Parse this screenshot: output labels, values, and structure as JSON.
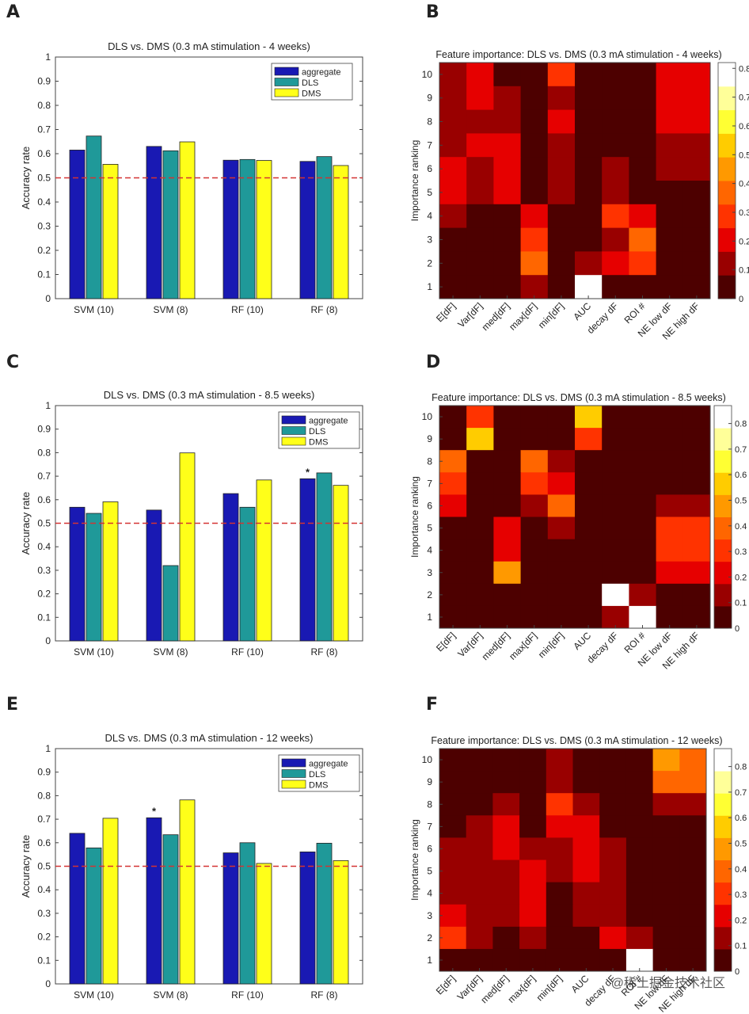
{
  "panels": [
    {
      "label": "A",
      "chart_data": {
        "type": "bar",
        "title": "DLS vs. DMS (0.3 mA stimulation - 4 weeks)",
        "ylabel": "Accuracy rate",
        "xlabel": "",
        "ylim": [
          0,
          1
        ],
        "yticks": [
          "0",
          "0.1",
          "0.2",
          "0.3",
          "0.4",
          "0.5",
          "0.6",
          "0.7",
          "0.8",
          "0.9",
          "1"
        ],
        "categories": [
          "SVM (10)",
          "SVM (8)",
          "RF (10)",
          "RF (8)"
        ],
        "series": [
          {
            "name": "aggregate",
            "color": "#1919b3",
            "values": [
              0.615,
              0.63,
              0.573,
              0.568
            ]
          },
          {
            "name": "DLS",
            "color": "#1f9999",
            "values": [
              0.673,
              0.612,
              0.576,
              0.588
            ]
          },
          {
            "name": "DMS",
            "color": "#ffff19",
            "values": [
              0.556,
              0.649,
              0.572,
              0.551
            ]
          }
        ],
        "reference_line": 0.5,
        "reference_line_color": "#d43333",
        "annotations": [],
        "legend": "top-right"
      }
    },
    {
      "label": "B",
      "chart_data": {
        "type": "heatmap",
        "title": "Feature importance: DLS vs. DMS (0.3 mA stimulation - 4 weeks)",
        "ylabel": "Importance ranking",
        "xlabels": [
          "E[dF]",
          "Var[dF]",
          "med[dF]",
          "max[dF]",
          "min[dF]",
          "AUC",
          "decay dF",
          "ROI #",
          "NE low dF",
          "NE high dF"
        ],
        "ylabels": [
          "10",
          "9",
          "8",
          "7",
          "6",
          "5",
          "4",
          "3",
          "2",
          "1"
        ],
        "colorbar_ticks": [
          "0",
          "0.1",
          "0.2",
          "0.3",
          "0.4",
          "0.5",
          "0.6",
          "0.7",
          "0.8"
        ],
        "vmax": 0.82,
        "matrix": [
          [
            0.1,
            0.2,
            0.0,
            0.0,
            0.3,
            0.0,
            0.0,
            0.0,
            0.2,
            0.2
          ],
          [
            0.1,
            0.2,
            0.1,
            0.0,
            0.1,
            0.0,
            0.0,
            0.0,
            0.2,
            0.2
          ],
          [
            0.1,
            0.1,
            0.1,
            0.0,
            0.2,
            0.0,
            0.0,
            0.0,
            0.2,
            0.2
          ],
          [
            0.1,
            0.2,
            0.2,
            0.0,
            0.1,
            0.0,
            0.0,
            0.0,
            0.1,
            0.1
          ],
          [
            0.2,
            0.1,
            0.2,
            0.0,
            0.1,
            0.0,
            0.1,
            0.0,
            0.1,
            0.1
          ],
          [
            0.2,
            0.1,
            0.2,
            0.0,
            0.1,
            0.0,
            0.1,
            0.0,
            0.0,
            0.0
          ],
          [
            0.1,
            0.0,
            0.0,
            0.2,
            0.0,
            0.0,
            0.3,
            0.2,
            0.0,
            0.0
          ],
          [
            0.0,
            0.0,
            0.0,
            0.3,
            0.0,
            0.0,
            0.1,
            0.4,
            0.0,
            0.0
          ],
          [
            0.0,
            0.0,
            0.0,
            0.4,
            0.0,
            0.1,
            0.2,
            0.3,
            0.0,
            0.0
          ],
          [
            0.0,
            0.0,
            0.0,
            0.1,
            0.0,
            0.8,
            0.0,
            0.0,
            0.0,
            0.0
          ]
        ]
      }
    },
    {
      "label": "C",
      "chart_data": {
        "type": "bar",
        "title": "DLS vs. DMS (0.3 mA stimulation - 8.5 weeks)",
        "ylabel": "Accuracy rate",
        "xlabel": "",
        "ylim": [
          0,
          1
        ],
        "yticks": [
          "0",
          "0.1",
          "0.2",
          "0.3",
          "0.4",
          "0.5",
          "0.6",
          "0.7",
          "0.8",
          "0.9",
          "1"
        ],
        "categories": [
          "SVM (10)",
          "SVM (8)",
          "RF (10)",
          "RF (8)"
        ],
        "series": [
          {
            "name": "aggregate",
            "color": "#1919b3",
            "values": [
              0.568,
              0.556,
              0.626,
              0.689
            ]
          },
          {
            "name": "DLS",
            "color": "#1f9999",
            "values": [
              0.542,
              0.32,
              0.568,
              0.714
            ]
          },
          {
            "name": "DMS",
            "color": "#ffff19",
            "values": [
              0.591,
              0.799,
              0.684,
              0.661
            ]
          }
        ],
        "reference_line": 0.5,
        "reference_line_color": "#d43333",
        "annotations": [
          {
            "category": 3,
            "series": 0,
            "text": "*"
          }
        ],
        "legend": "top-right"
      }
    },
    {
      "label": "D",
      "chart_data": {
        "type": "heatmap",
        "title": "Feature importance: DLS vs. DMS (0.3 mA stimulation - 8.5 weeks)",
        "ylabel": "Importance ranking",
        "xlabels": [
          "E[dF]",
          "Var[dF]",
          "med[dF]",
          "max[dF]",
          "min[dF]",
          "AUC",
          "decay dF",
          "ROI #",
          "NE low dF",
          "NE high dF"
        ],
        "ylabels": [
          "10",
          "9",
          "8",
          "7",
          "6",
          "5",
          "4",
          "3",
          "2",
          "1"
        ],
        "colorbar_ticks": [
          "0",
          "0.1",
          "0.2",
          "0.3",
          "0.4",
          "0.5",
          "0.6",
          "0.7",
          "0.8"
        ],
        "vmax": 0.87,
        "matrix": [
          [
            0.0,
            0.3,
            0.0,
            0.0,
            0.0,
            0.6,
            0.0,
            0.0,
            0.0,
            0.0
          ],
          [
            0.0,
            0.6,
            0.0,
            0.0,
            0.0,
            0.3,
            0.0,
            0.0,
            0.0,
            0.0
          ],
          [
            0.4,
            0.0,
            0.0,
            0.4,
            0.1,
            0.0,
            0.0,
            0.0,
            0.0,
            0.0
          ],
          [
            0.3,
            0.0,
            0.0,
            0.3,
            0.2,
            0.0,
            0.0,
            0.0,
            0.0,
            0.0
          ],
          [
            0.2,
            0.0,
            0.0,
            0.1,
            0.4,
            0.0,
            0.0,
            0.0,
            0.1,
            0.1
          ],
          [
            0.0,
            0.0,
            0.2,
            0.0,
            0.1,
            0.0,
            0.0,
            0.0,
            0.3,
            0.3
          ],
          [
            0.0,
            0.0,
            0.2,
            0.0,
            0.0,
            0.0,
            0.0,
            0.0,
            0.3,
            0.3
          ],
          [
            0.0,
            0.0,
            0.5,
            0.0,
            0.0,
            0.0,
            0.0,
            0.0,
            0.2,
            0.2
          ],
          [
            0.0,
            0.0,
            0.0,
            0.0,
            0.0,
            0.0,
            0.9,
            0.1,
            0.0,
            0.0
          ],
          [
            0.0,
            0.0,
            0.0,
            0.0,
            0.0,
            0.0,
            0.1,
            0.9,
            0.0,
            0.0
          ]
        ]
      }
    },
    {
      "label": "E",
      "chart_data": {
        "type": "bar",
        "title": "DLS vs. DMS (0.3 mA stimulation - 12 weeks)",
        "ylabel": "Accuracy rate",
        "xlabel": "",
        "ylim": [
          0,
          1
        ],
        "yticks": [
          "0",
          "0.1",
          "0.2",
          "0.3",
          "0.4",
          "0.5",
          "0.6",
          "0.7",
          "0.8",
          "0.9",
          "1"
        ],
        "categories": [
          "SVM (10)",
          "SVM (8)",
          "RF (10)",
          "RF (8)"
        ],
        "series": [
          {
            "name": "aggregate",
            "color": "#1919b3",
            "values": [
              0.64,
              0.706,
              0.557,
              0.561
            ]
          },
          {
            "name": "DLS",
            "color": "#1f9999",
            "values": [
              0.578,
              0.634,
              0.6,
              0.598
            ]
          },
          {
            "name": "DMS",
            "color": "#ffff19",
            "values": [
              0.704,
              0.782,
              0.512,
              0.524
            ]
          }
        ],
        "reference_line": 0.5,
        "reference_line_color": "#d43333",
        "annotations": [
          {
            "category": 1,
            "series": 0,
            "text": "*"
          }
        ],
        "legend": "top-right"
      }
    },
    {
      "label": "F",
      "chart_data": {
        "type": "heatmap",
        "title": "Feature importance: DLS vs. DMS (0.3 mA stimulation - 12 weeks)",
        "ylabel": "Importance ranking",
        "xlabels": [
          "E[dF]",
          "Var[dF]",
          "med[dF]",
          "max[dF]",
          "min[dF]",
          "AUC",
          "decay dF",
          "ROI #",
          "NE low dF",
          "NE high dF"
        ],
        "ylabels": [
          "10",
          "9",
          "8",
          "7",
          "6",
          "5",
          "4",
          "3",
          "2",
          "1"
        ],
        "colorbar_ticks": [
          "0",
          "0.1",
          "0.2",
          "0.3",
          "0.4",
          "0.5",
          "0.6",
          "0.7",
          "0.8"
        ],
        "vmax": 0.87,
        "matrix": [
          [
            0.0,
            0.0,
            0.0,
            0.0,
            0.1,
            0.0,
            0.0,
            0.0,
            0.5,
            0.4
          ],
          [
            0.0,
            0.0,
            0.0,
            0.0,
            0.1,
            0.0,
            0.0,
            0.0,
            0.4,
            0.4
          ],
          [
            0.0,
            0.0,
            0.1,
            0.0,
            0.3,
            0.1,
            0.0,
            0.0,
            0.1,
            0.1
          ],
          [
            0.0,
            0.1,
            0.2,
            0.0,
            0.2,
            0.2,
            0.0,
            0.0,
            0.0,
            0.0
          ],
          [
            0.1,
            0.1,
            0.2,
            0.1,
            0.1,
            0.2,
            0.1,
            0.0,
            0.0,
            0.0
          ],
          [
            0.1,
            0.1,
            0.1,
            0.2,
            0.1,
            0.2,
            0.1,
            0.0,
            0.0,
            0.0
          ],
          [
            0.1,
            0.1,
            0.1,
            0.2,
            0.0,
            0.1,
            0.1,
            0.0,
            0.0,
            0.0
          ],
          [
            0.2,
            0.1,
            0.1,
            0.2,
            0.0,
            0.1,
            0.1,
            0.0,
            0.0,
            0.0
          ],
          [
            0.3,
            0.1,
            0.0,
            0.1,
            0.0,
            0.0,
            0.2,
            0.1,
            0.0,
            0.0
          ],
          [
            0.0,
            0.0,
            0.0,
            0.0,
            0.0,
            0.0,
            0.0,
            0.9,
            0.0,
            0.0
          ]
        ]
      }
    }
  ],
  "watermark": "@稀土掘金技术社区"
}
